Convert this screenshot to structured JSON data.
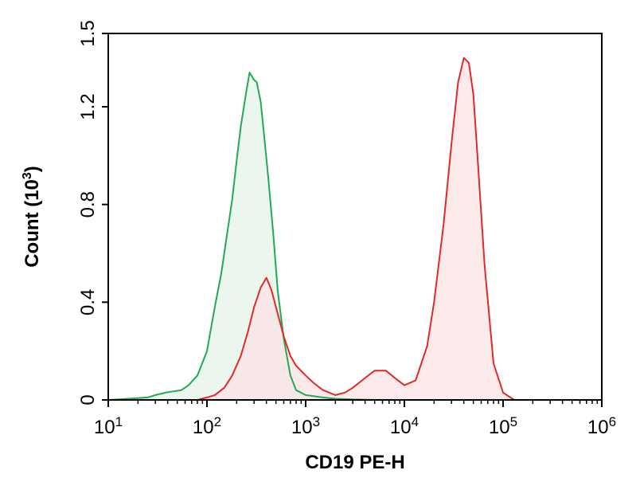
{
  "chart_data": {
    "type": "area",
    "xlabel": "CD19 PE-H",
    "ylabel": "Count (10",
    "ylabel_sup": "3",
    "ylabel_end": ")",
    "x_scale": "log",
    "xlim": [
      10,
      1000000
    ],
    "ylim": [
      0,
      1.5
    ],
    "x_tick_labels": [
      {
        "base": "10",
        "exp": "1",
        "value": 10
      },
      {
        "base": "10",
        "exp": "2",
        "value": 100
      },
      {
        "base": "10",
        "exp": "3",
        "value": 1000
      },
      {
        "base": "10",
        "exp": "4",
        "value": 10000
      },
      {
        "base": "10",
        "exp": "5",
        "value": 100000
      },
      {
        "base": "10",
        "exp": "6",
        "value": 1000000
      }
    ],
    "y_ticks": [
      {
        "label": "0",
        "value": 0
      },
      {
        "label": "0.4",
        "value": 0.4
      },
      {
        "label": "0.8",
        "value": 0.8
      },
      {
        "label": "1.2",
        "value": 1.2
      },
      {
        "label": "1.5",
        "value": 1.5
      }
    ],
    "grid": false,
    "series": [
      {
        "color": "#22aa55",
        "fill": "#e3f3e8",
        "x": [
          10,
          16,
          25,
          30,
          38,
          45,
          55,
          65,
          80,
          100,
          120,
          140,
          160,
          180,
          200,
          220,
          250,
          270,
          300,
          320,
          350,
          380,
          420,
          470,
          520,
          600,
          700,
          800,
          1000,
          1500,
          2000,
          3000,
          5000,
          10000
        ],
        "values": [
          0.0,
          0.005,
          0.01,
          0.02,
          0.03,
          0.035,
          0.04,
          0.06,
          0.1,
          0.2,
          0.38,
          0.52,
          0.68,
          0.82,
          0.98,
          1.12,
          1.26,
          1.34,
          1.31,
          1.3,
          1.22,
          1.08,
          0.9,
          0.68,
          0.45,
          0.25,
          0.1,
          0.04,
          0.02,
          0.01,
          0.005,
          0.002,
          0.0,
          0.0
        ]
      },
      {
        "color": "#dd2b2b",
        "fill": "#fbe3e4",
        "x": [
          80,
          100,
          120,
          150,
          180,
          220,
          260,
          300,
          350,
          400,
          450,
          500,
          600,
          700,
          800,
          1000,
          1200,
          1500,
          2000,
          2500,
          3000,
          4000,
          5000,
          6500,
          8000,
          10000,
          13000,
          17000,
          20000,
          25000,
          30000,
          35000,
          40000,
          45000,
          50000,
          55000,
          65000,
          80000,
          100000,
          130000,
          160000
        ],
        "values": [
          0.0,
          0.01,
          0.02,
          0.05,
          0.1,
          0.18,
          0.28,
          0.38,
          0.46,
          0.5,
          0.45,
          0.38,
          0.26,
          0.18,
          0.14,
          0.1,
          0.07,
          0.04,
          0.02,
          0.03,
          0.05,
          0.09,
          0.12,
          0.12,
          0.09,
          0.06,
          0.08,
          0.22,
          0.4,
          0.72,
          1.05,
          1.3,
          1.4,
          1.38,
          1.25,
          1.0,
          0.55,
          0.15,
          0.03,
          0.0,
          0.0
        ]
      }
    ]
  }
}
